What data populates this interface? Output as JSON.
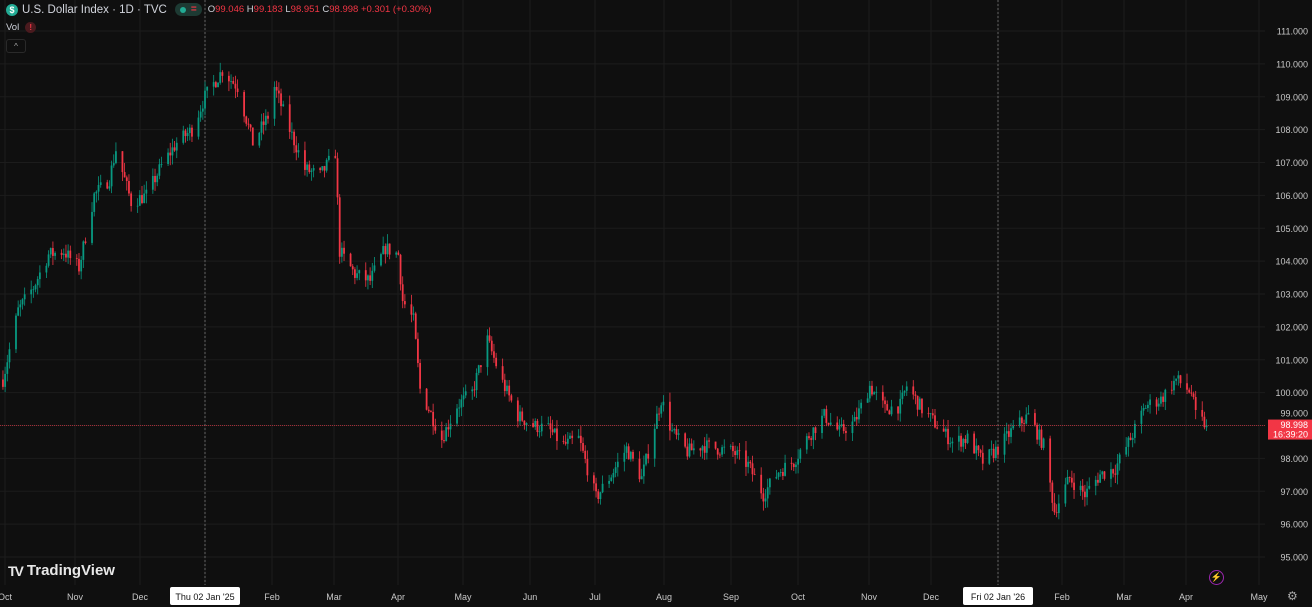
{
  "header": {
    "symbol_icon": "$",
    "title": "U.S. Dollar Index · 1D · TVC",
    "market_status": "open",
    "eq_icon": "=",
    "ohlc": {
      "o_label": "O",
      "o": "99.046",
      "h_label": "H",
      "h": "99.183",
      "l_label": "L",
      "l": "98.951",
      "c_label": "C",
      "c": "98.998",
      "change": "+0.301 (+0.30%)"
    },
    "vol_label": "Vol",
    "vol_warning_icon": "!",
    "collapse_icon": "^"
  },
  "brand": {
    "logo_text": "TradingView"
  },
  "colors": {
    "up": "#089981",
    "down": "#f23645",
    "background": "#0f0f0f",
    "grid": "#1c1c1c"
  },
  "icons": {
    "bolt": "lightning-icon",
    "settings": "gear-icon"
  },
  "chart_data": {
    "type": "candlestick",
    "title": "U.S. Dollar Index · 1D · TVC",
    "interval": "1D",
    "ylim": [
      94.5,
      111.3
    ],
    "y_ticks": [
      "111.000",
      "110.000",
      "109.000",
      "108.000",
      "107.000",
      "106.000",
      "105.000",
      "104.000",
      "103.000",
      "102.000",
      "101.000",
      "100.000",
      "99.000",
      "98.000",
      "97.000",
      "96.000",
      "95.000"
    ],
    "x_ticks": [
      "Oct",
      "Nov",
      "Dec",
      "Thu 02 Jan '25",
      "Feb",
      "Mar",
      "Apr",
      "May",
      "Jun",
      "Jul",
      "Aug",
      "Sep",
      "Oct",
      "Nov",
      "Dec",
      "Fri 02 Jan '26",
      "Feb",
      "Mar",
      "Apr",
      "May"
    ],
    "crosshair_dates": [
      "Thu 02 Jan '25",
      "Fri 02 Jan '26"
    ],
    "last_price": {
      "value": 98.998,
      "label": "98.998",
      "countdown": "16:39:20"
    },
    "grid": true,
    "approx_close_path": [
      [
        "2024-10-01",
        100.4
      ],
      [
        "2024-10-08",
        102.5
      ],
      [
        "2024-10-15",
        103.2
      ],
      [
        "2024-10-22",
        104.2
      ],
      [
        "2024-10-29",
        104.3
      ],
      [
        "2024-11-05",
        103.8
      ],
      [
        "2024-11-12",
        106.0
      ],
      [
        "2024-11-19",
        106.5
      ],
      [
        "2024-11-22",
        107.4
      ],
      [
        "2024-11-29",
        105.8
      ],
      [
        "2024-12-06",
        106.0
      ],
      [
        "2024-12-13",
        106.9
      ],
      [
        "2024-12-20",
        107.6
      ],
      [
        "2024-12-27",
        108.0
      ],
      [
        "2025-01-02",
        109.0
      ],
      [
        "2025-01-10",
        109.8
      ],
      [
        "2025-01-17",
        109.3
      ],
      [
        "2025-01-24",
        107.6
      ],
      [
        "2025-01-31",
        108.4
      ],
      [
        "2025-02-03",
        109.3
      ],
      [
        "2025-02-10",
        108.0
      ],
      [
        "2025-02-17",
        106.8
      ],
      [
        "2025-02-24",
        106.6
      ],
      [
        "2025-03-03",
        107.3
      ],
      [
        "2025-03-05",
        104.3
      ],
      [
        "2025-03-12",
        103.6
      ],
      [
        "2025-03-19",
        103.4
      ],
      [
        "2025-03-26",
        104.4
      ],
      [
        "2025-04-01",
        104.2
      ],
      [
        "2025-04-03",
        102.8
      ],
      [
        "2025-04-08",
        102.2
      ],
      [
        "2025-04-11",
        100.1
      ],
      [
        "2025-04-21",
        98.6
      ],
      [
        "2025-04-28",
        99.6
      ],
      [
        "2025-05-05",
        100.0
      ],
      [
        "2025-05-12",
        101.6
      ],
      [
        "2025-05-19",
        100.3
      ],
      [
        "2025-05-26",
        99.3
      ],
      [
        "2025-06-02",
        99.0
      ],
      [
        "2025-06-09",
        98.9
      ],
      [
        "2025-06-16",
        98.4
      ],
      [
        "2025-06-23",
        98.6
      ],
      [
        "2025-07-01",
        96.8
      ],
      [
        "2025-07-08",
        97.5
      ],
      [
        "2025-07-15",
        98.3
      ],
      [
        "2025-07-22",
        97.4
      ],
      [
        "2025-07-31",
        99.8
      ],
      [
        "2025-08-05",
        98.8
      ],
      [
        "2025-08-12",
        98.2
      ],
      [
        "2025-08-19",
        98.4
      ],
      [
        "2025-08-26",
        98.3
      ],
      [
        "2025-09-02",
        98.2
      ],
      [
        "2025-09-09",
        97.8
      ],
      [
        "2025-09-16",
        96.9
      ],
      [
        "2025-09-23",
        97.6
      ],
      [
        "2025-09-30",
        97.9
      ],
      [
        "2025-10-07",
        98.7
      ],
      [
        "2025-10-14",
        99.3
      ],
      [
        "2025-10-21",
        98.8
      ],
      [
        "2025-10-28",
        99.1
      ],
      [
        "2025-11-04",
        100.2
      ],
      [
        "2025-11-11",
        99.5
      ],
      [
        "2025-11-18",
        99.6
      ],
      [
        "2025-11-21",
        100.2
      ],
      [
        "2025-11-28",
        99.5
      ],
      [
        "2025-12-05",
        99.0
      ],
      [
        "2025-12-12",
        98.5
      ],
      [
        "2025-12-19",
        98.6
      ],
      [
        "2025-12-26",
        97.9
      ],
      [
        "2026-01-02",
        98.3
      ],
      [
        "2026-01-09",
        98.9
      ],
      [
        "2026-01-16",
        99.3
      ],
      [
        "2026-01-23",
        98.4
      ],
      [
        "2026-01-28",
        96.4
      ],
      [
        "2026-02-04",
        97.4
      ],
      [
        "2026-02-11",
        96.9
      ],
      [
        "2026-02-18",
        97.5
      ],
      [
        "2026-02-25",
        97.7
      ],
      [
        "2026-03-04",
        98.6
      ],
      [
        "2026-03-11",
        99.6
      ],
      [
        "2026-03-18",
        99.8
      ],
      [
        "2026-03-25",
        100.4
      ],
      [
        "2026-04-01",
        100.0
      ],
      [
        "2026-04-03",
        99.3
      ],
      [
        "2026-04-08",
        98.998
      ]
    ]
  }
}
